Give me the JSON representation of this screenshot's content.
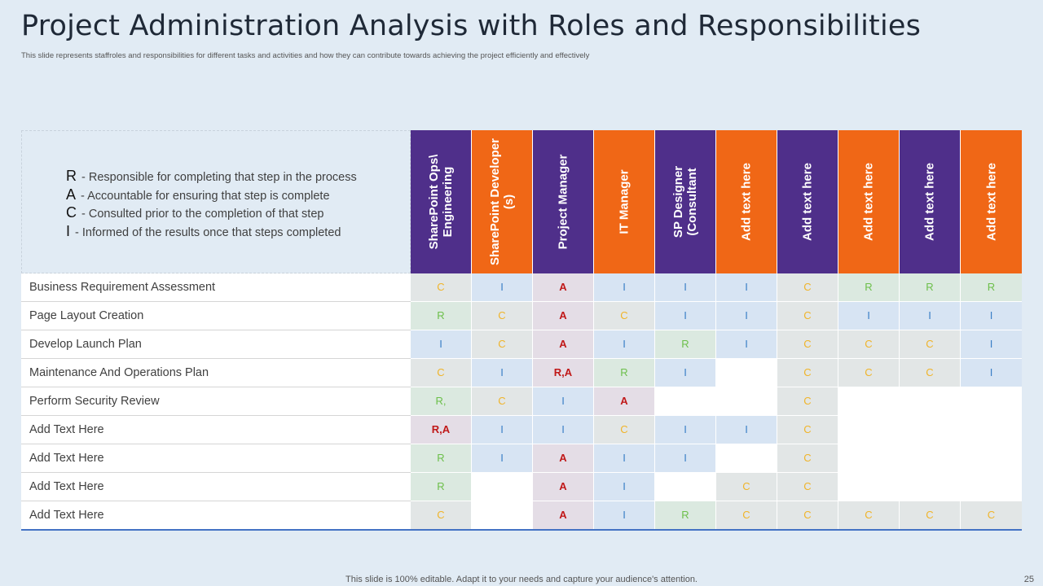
{
  "title": "Project Administration  Analysis with Roles and Responsibilities",
  "subtitle": "This slide represents staffroles and responsibilities for different tasks and activities and how they can contribute towards achieving the project efficiently and effectively",
  "legend": [
    {
      "key": "R",
      "text": " - Responsible for completing that step in the process"
    },
    {
      "key": "A",
      "text": " - Accountable for ensuring that step is complete"
    },
    {
      "key": "C",
      "text": " - Consulted prior to the completion of that step"
    },
    {
      "key": "I",
      "text": " - Informed of the results once that steps completed"
    }
  ],
  "colors": {
    "purple": "#4f2f8a",
    "orange": "#f06716",
    "accent_line": "#4472c4"
  },
  "roles": [
    {
      "label": "SharePoint Ops\\ Engineering",
      "color": "purple"
    },
    {
      "label": "SharePoint Developer (s)",
      "color": "orange"
    },
    {
      "label": "Project Manager",
      "color": "purple"
    },
    {
      "label": "IT Manager",
      "color": "orange"
    },
    {
      "label": "SP Designer (Consultant",
      "color": "purple"
    },
    {
      "label": "Add text here",
      "color": "orange"
    },
    {
      "label": "Add text here",
      "color": "purple"
    },
    {
      "label": "Add text here",
      "color": "orange"
    },
    {
      "label": "Add text here",
      "color": "purple"
    },
    {
      "label": "Add text here",
      "color": "orange"
    }
  ],
  "tasks": [
    {
      "name": "Business Requirement Assessment",
      "cells": [
        "C",
        "I",
        "A",
        "I",
        "I",
        "I",
        "C",
        "R",
        "R",
        "R"
      ]
    },
    {
      "name": "Page Layout Creation",
      "cells": [
        "R",
        "C",
        "A",
        "C",
        "I",
        "I",
        "C",
        "I",
        "I",
        "I"
      ]
    },
    {
      "name": "Develop Launch Plan",
      "cells": [
        "I",
        "C",
        "A",
        "I",
        "R",
        "I",
        "C",
        "C",
        "C",
        "I"
      ]
    },
    {
      "name": "Maintenance And Operations Plan",
      "cells": [
        "C",
        "I",
        "R,A",
        "R",
        "I",
        "",
        "C",
        "C",
        "C",
        "I"
      ]
    },
    {
      "name": "Perform Security Review",
      "cells": [
        "R,",
        "C",
        "I",
        "A",
        "",
        "",
        "C",
        "",
        "",
        ""
      ]
    },
    {
      "name": "Add Text Here",
      "cells": [
        "R,A",
        "I",
        "I",
        "C",
        "I",
        "I",
        "C",
        "",
        "",
        ""
      ]
    },
    {
      "name": "Add Text Here",
      "cells": [
        "R",
        "I",
        "A",
        "I",
        "I",
        "",
        "C",
        "",
        "",
        ""
      ]
    },
    {
      "name": "Add Text Here",
      "cells": [
        "R",
        "",
        "A",
        "I",
        "",
        "C",
        "C",
        "",
        "",
        ""
      ]
    },
    {
      "name": "Add Text Here",
      "cells": [
        "C",
        "",
        "A",
        "I",
        "R",
        "C",
        "C",
        "C",
        "C",
        "C"
      ]
    }
  ],
  "footer": "This slide is 100% editable. Adapt it to your needs and capture your audience's attention.",
  "page_number": "25"
}
